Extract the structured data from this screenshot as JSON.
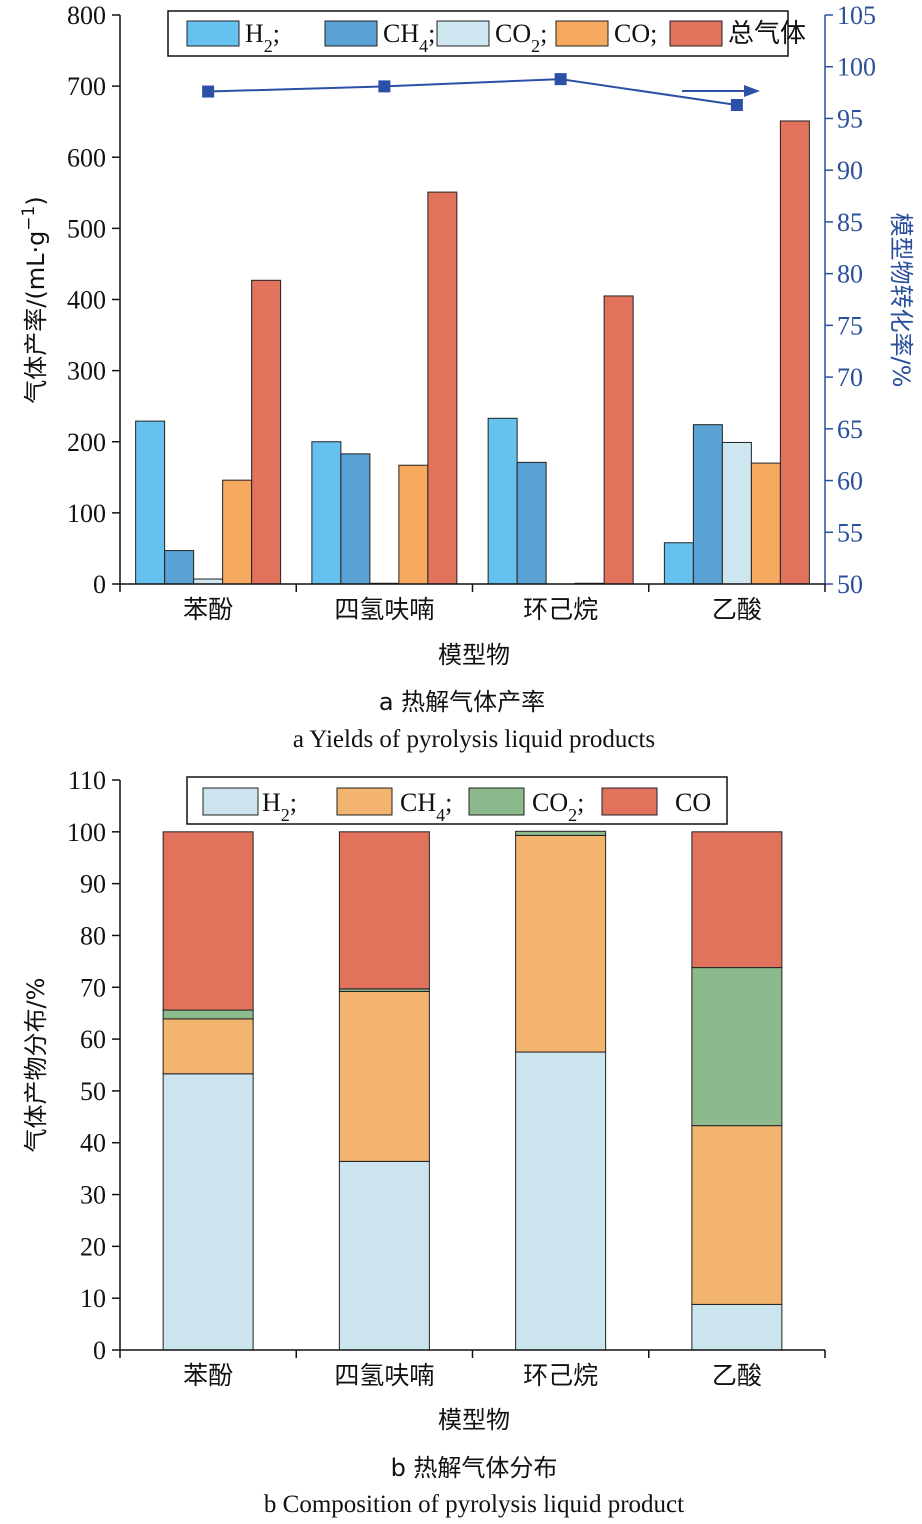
{
  "chart_data": [
    {
      "type": "bar",
      "panel": "a",
      "categories": [
        "苯酚",
        "四氢呋喃",
        "环己烷",
        "乙酸"
      ],
      "series": [
        {
          "name": "H2;",
          "legend_main": "H",
          "legend_sub": "2",
          "legend_tail": ";",
          "color": "#66c1ef",
          "values": [
            229,
            200,
            233,
            58
          ]
        },
        {
          "name": "CH4;",
          "legend_main": "CH",
          "legend_sub": "4",
          "legend_tail": ";",
          "color": "#5aa2d4",
          "values": [
            47,
            183,
            171,
            224
          ]
        },
        {
          "name": "CO2;",
          "legend_main": "CO",
          "legend_sub": "2",
          "legend_tail": ";",
          "color": "#cde6f0",
          "values": [
            7,
            1,
            0,
            199
          ]
        },
        {
          "name": "CO;",
          "legend_main": "CO",
          "legend_sub": "",
          "legend_tail": ";",
          "color": "#f5aa60",
          "values": [
            146,
            167,
            1,
            170
          ]
        },
        {
          "name": "总气体",
          "legend_main": "总气体",
          "legend_sub": "",
          "legend_tail": "",
          "color": "#e1735d",
          "values": [
            427,
            551,
            405,
            651
          ]
        }
      ],
      "line_series": {
        "name": "模型物转化率",
        "color": "#2c50a8",
        "values": [
          97.6,
          98.1,
          98.8,
          96.3
        ]
      },
      "ylim": [
        0,
        800
      ],
      "yticks": [
        0,
        100,
        200,
        300,
        400,
        500,
        600,
        700,
        800
      ],
      "y2lim": [
        50,
        105
      ],
      "y2ticks": [
        50,
        55,
        60,
        65,
        70,
        75,
        80,
        85,
        90,
        95,
        100,
        105
      ],
      "xlabel": "模型物",
      "ylabel": "气体产率/(mL·g",
      "ylabel_sup": "−1",
      "ylabel_tail": ")",
      "y2label": "模型物转化率/%",
      "legend_position": "top",
      "caption_cn": "a 热解气体产率",
      "caption_en": "a Yields of pyrolysis liquid products"
    },
    {
      "type": "bar",
      "stacked": true,
      "panel": "b",
      "categories": [
        "苯酚",
        "四氢呋喃",
        "环己烷",
        "乙酸"
      ],
      "series": [
        {
          "name": "H2;",
          "legend_main": "H",
          "legend_sub": "2",
          "legend_tail": ";",
          "color": "#cce4ee",
          "values": [
            53.3,
            36.4,
            57.5,
            8.8
          ]
        },
        {
          "name": "CH4;",
          "legend_main": "CH",
          "legend_sub": "4",
          "legend_tail": ";",
          "color": "#f2b46e",
          "values": [
            10.6,
            32.8,
            41.8,
            34.5
          ]
        },
        {
          "name": "CO2;",
          "legend_main": "CO",
          "legend_sub": "2",
          "legend_tail": ";",
          "color": "#8cba8c",
          "values": [
            1.7,
            0.5,
            0.8,
            30.5
          ]
        },
        {
          "name": "CO",
          "legend_main": "CO",
          "legend_sub": "",
          "legend_tail": "",
          "color": "#e1735d",
          "values": [
            34.4,
            30.3,
            0,
            26.2
          ]
        }
      ],
      "ylim": [
        0,
        110
      ],
      "yticks": [
        0,
        10,
        20,
        30,
        40,
        50,
        60,
        70,
        80,
        90,
        100,
        110
      ],
      "xlabel": "模型物",
      "ylabel": "气体产物分布/%",
      "legend_position": "top",
      "caption_cn": "b 热解气体分布",
      "caption_en": "b Composition of pyrolysis liquid product"
    }
  ]
}
